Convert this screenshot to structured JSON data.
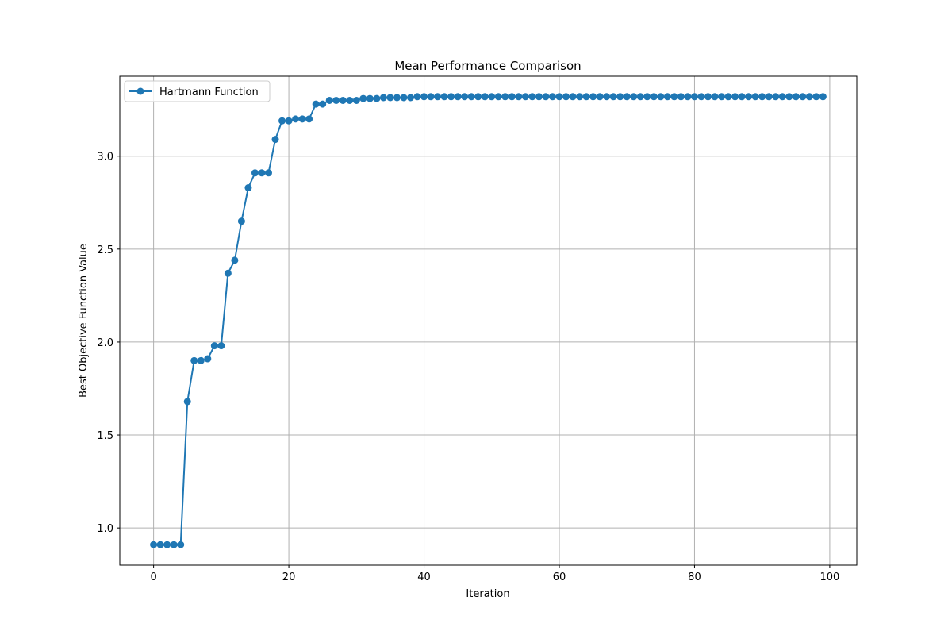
{
  "chart_data": {
    "type": "line",
    "title": "Mean Performance Comparison",
    "xlabel": "Iteration",
    "ylabel": "Best Objective Function Value",
    "xlim": [
      -5,
      104
    ],
    "ylim": [
      0.8,
      3.43
    ],
    "xticks": [
      0,
      20,
      40,
      60,
      80,
      100
    ],
    "yticks": [
      1.0,
      1.5,
      2.0,
      2.5,
      3.0
    ],
    "xtick_labels": [
      "0",
      "20",
      "40",
      "60",
      "80",
      "100"
    ],
    "ytick_labels": [
      "1.0",
      "1.5",
      "2.0",
      "2.5",
      "3.0"
    ],
    "grid": true,
    "legend_position": "top-left",
    "series": [
      {
        "name": "Hartmann Function",
        "color": "#1f77b4",
        "marker": "circle",
        "x": [
          0,
          1,
          2,
          3,
          4,
          5,
          6,
          7,
          8,
          9,
          10,
          11,
          12,
          13,
          14,
          15,
          16,
          17,
          18,
          19,
          20,
          21,
          22,
          23,
          24,
          25,
          26,
          27,
          28,
          29,
          30,
          31,
          32,
          33,
          34,
          35,
          36,
          37,
          38,
          39,
          40,
          41,
          42,
          43,
          44,
          45,
          46,
          47,
          48,
          49,
          50,
          51,
          52,
          53,
          54,
          55,
          56,
          57,
          58,
          59,
          60,
          61,
          62,
          63,
          64,
          65,
          66,
          67,
          68,
          69,
          70,
          71,
          72,
          73,
          74,
          75,
          76,
          77,
          78,
          79,
          80,
          81,
          82,
          83,
          84,
          85,
          86,
          87,
          88,
          89,
          90,
          91,
          92,
          93,
          94,
          95,
          96,
          97,
          98,
          99
        ],
        "values": [
          0.91,
          0.91,
          0.91,
          0.91,
          0.91,
          1.68,
          1.9,
          1.9,
          1.91,
          1.98,
          1.98,
          2.37,
          2.44,
          2.65,
          2.83,
          2.91,
          2.91,
          2.91,
          3.09,
          3.19,
          3.19,
          3.2,
          3.2,
          3.2,
          3.28,
          3.28,
          3.3,
          3.3,
          3.3,
          3.3,
          3.3,
          3.31,
          3.31,
          3.31,
          3.315,
          3.315,
          3.315,
          3.315,
          3.315,
          3.32,
          3.32,
          3.32,
          3.32,
          3.32,
          3.32,
          3.32,
          3.32,
          3.32,
          3.32,
          3.32,
          3.32,
          3.32,
          3.32,
          3.32,
          3.32,
          3.32,
          3.32,
          3.32,
          3.32,
          3.32,
          3.32,
          3.32,
          3.32,
          3.32,
          3.32,
          3.32,
          3.32,
          3.32,
          3.32,
          3.32,
          3.32,
          3.32,
          3.32,
          3.32,
          3.32,
          3.32,
          3.32,
          3.32,
          3.32,
          3.32,
          3.32,
          3.32,
          3.32,
          3.32,
          3.32,
          3.32,
          3.32,
          3.32,
          3.32,
          3.32,
          3.32,
          3.32,
          3.32,
          3.32,
          3.32,
          3.32,
          3.32,
          3.32,
          3.32,
          3.32
        ]
      }
    ]
  }
}
